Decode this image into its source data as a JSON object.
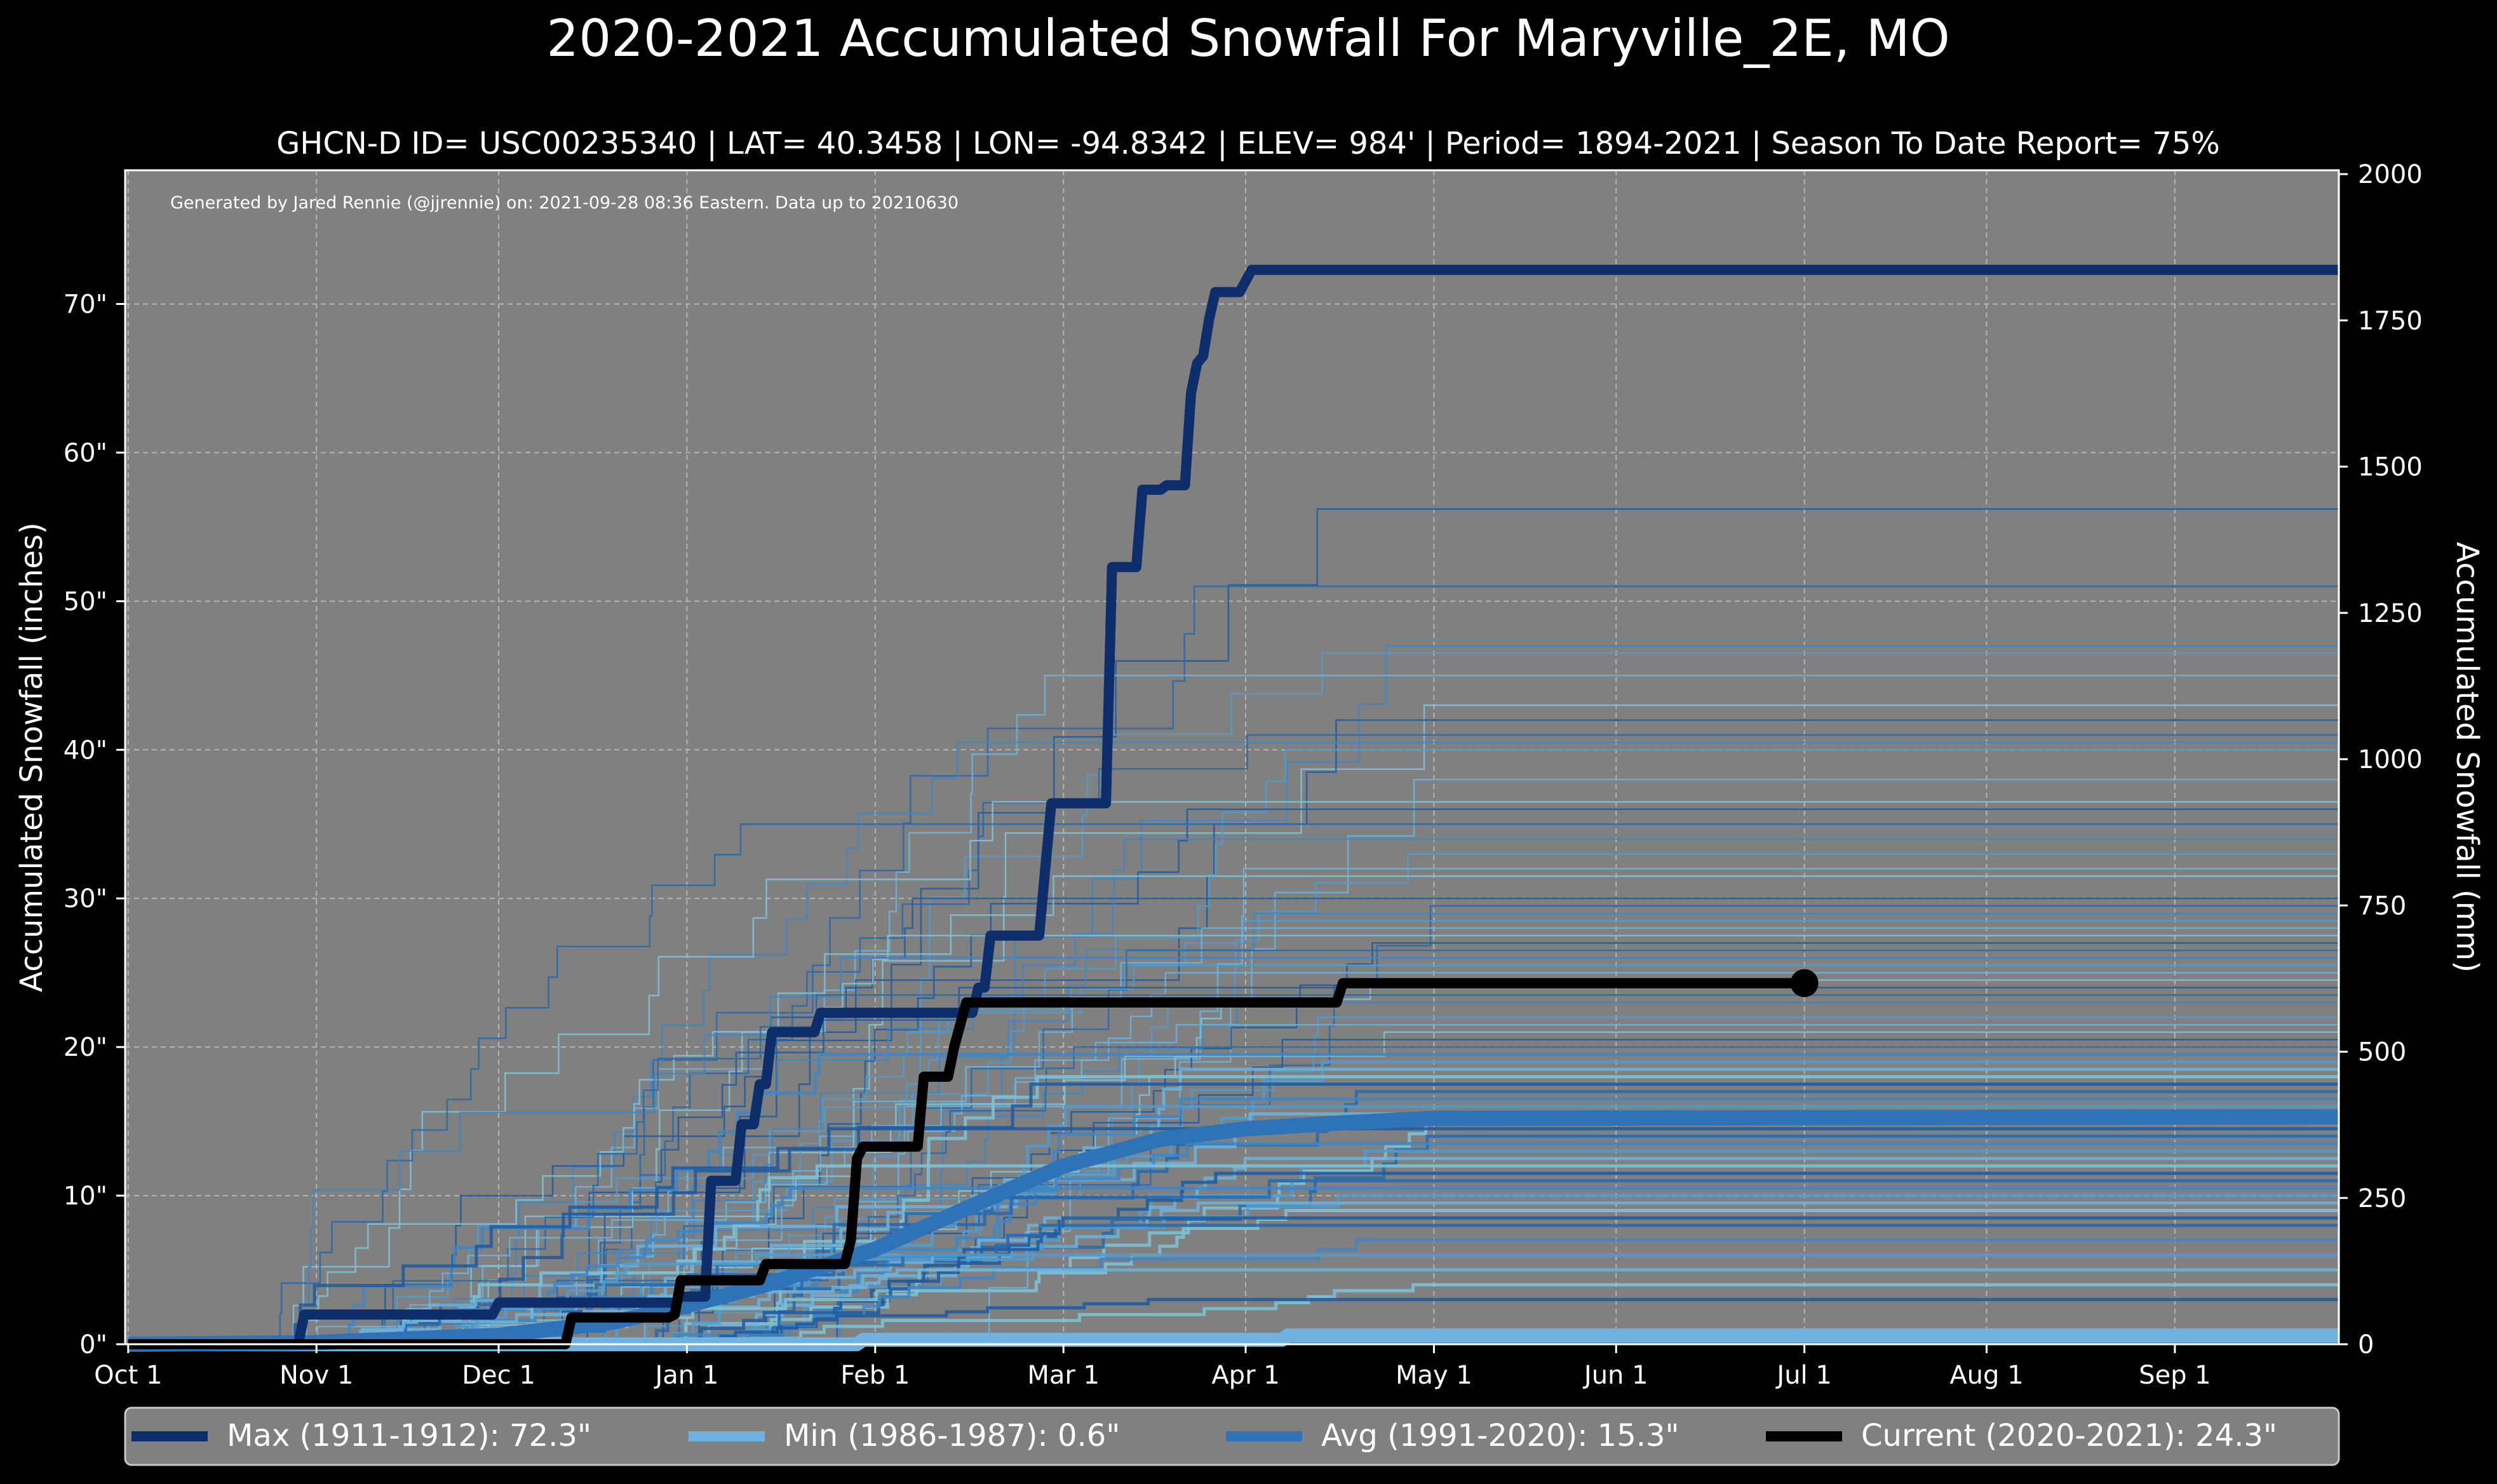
{
  "chart_data": {
    "type": "line",
    "title": "2020-2021 Accumulated Snowfall For Maryville_2E, MO",
    "subtitle": "GHCN-D ID= USC00235340 | LAT= 40.3458 | LON= -94.8342 | ELEV= 984' | Period= 1894-2021 | Season To Date Report= 75%",
    "credit": "Generated by Jared Rennie (@jjrennie) on: 2021-09-28 08:36 Eastern. Data up to 20210630",
    "ylabel": "Accumulated Snowfall (inches)",
    "ylabel_right": "Accumulated Snowfall (mm)",
    "xlabel": "",
    "ylim": [
      0,
      79
    ],
    "ylim_right_mm": [
      0,
      2006.6
    ],
    "xlim_days": [
      -0.5,
      364
    ],
    "grid": true,
    "legend_position": "bottom",
    "x_ticks": [
      {
        "label": "Oct 1",
        "day": 0
      },
      {
        "label": "Nov 1",
        "day": 31
      },
      {
        "label": "Dec 1",
        "day": 61
      },
      {
        "label": "Jan 1",
        "day": 92
      },
      {
        "label": "Feb 1",
        "day": 123
      },
      {
        "label": "Mar 1",
        "day": 154
      },
      {
        "label": "Apr 1",
        "day": 184
      },
      {
        "label": "May 1",
        "day": 215
      },
      {
        "label": "Jun 1",
        "day": 245
      },
      {
        "label": "Jul 1",
        "day": 276
      },
      {
        "label": "Aug 1",
        "day": 306
      },
      {
        "label": "Sep 1",
        "day": 337
      }
    ],
    "y_ticks_left": [
      {
        "label": "0\"",
        "value": 0
      },
      {
        "label": "10\"",
        "value": 10
      },
      {
        "label": "20\"",
        "value": 20
      },
      {
        "label": "30\"",
        "value": 30
      },
      {
        "label": "40\"",
        "value": 40
      },
      {
        "label": "50\"",
        "value": 50
      },
      {
        "label": "60\"",
        "value": 60
      },
      {
        "label": "70\"",
        "value": 70
      }
    ],
    "y_ticks_right": [
      {
        "label": "0",
        "mm": 0
      },
      {
        "label": "250",
        "mm": 250
      },
      {
        "label": "500",
        "mm": 500
      },
      {
        "label": "750",
        "mm": 750
      },
      {
        "label": "1000",
        "mm": 1000
      },
      {
        "label": "1250",
        "mm": 1250
      },
      {
        "label": "1500",
        "mm": 1500
      },
      {
        "label": "1750",
        "mm": 1750
      },
      {
        "label": "2000",
        "mm": 2000
      }
    ],
    "historical_season_finals_inches": [
      56.2,
      51.0,
      47.0,
      46.5,
      45.0,
      43.0,
      42.0,
      41.0,
      40.5,
      40.0,
      38.0,
      36.5,
      36.0,
      35.0,
      34.0,
      33.0,
      32.0,
      31.5,
      30.0,
      29.5,
      29.0,
      28.5,
      28.0,
      27.5,
      27.0,
      26.5,
      26.0,
      25.5,
      25.0,
      24.5,
      24.0,
      23.5,
      23.0,
      22.0,
      21.5,
      21.0,
      20.5,
      20.0,
      19.5,
      19.0,
      18.5,
      18.0,
      17.5,
      17.0,
      16.5,
      16.0,
      15.5,
      15.0,
      14.5,
      14.0,
      13.5,
      13.0,
      12.5,
      12.0,
      11.5,
      11.0,
      10.5,
      10.0,
      9.5,
      9.0,
      8.5,
      8.0,
      7.0,
      6.0,
      5.0,
      4.0,
      3.0
    ],
    "series": [
      {
        "name": "Max (1911-1912)",
        "legend_value": "72.3\"",
        "color": "#0d2e6b",
        "points": [
          [
            0,
            0
          ],
          [
            28,
            0
          ],
          [
            29,
            2.0
          ],
          [
            49,
            2.0
          ],
          [
            50,
            2.0
          ],
          [
            60,
            2.0
          ],
          [
            61,
            2.8
          ],
          [
            90,
            2.8
          ],
          [
            91,
            3.2
          ],
          [
            95,
            3.2
          ],
          [
            96,
            11.0
          ],
          [
            100,
            11.0
          ],
          [
            101,
            14.8
          ],
          [
            103,
            14.8
          ],
          [
            104,
            17.5
          ],
          [
            105,
            17.5
          ],
          [
            106,
            21.0
          ],
          [
            113,
            21.0
          ],
          [
            114,
            22.3
          ],
          [
            124,
            22.3
          ],
          [
            125,
            22.3
          ],
          [
            139,
            22.3
          ],
          [
            140,
            24.0
          ],
          [
            141,
            24.0
          ],
          [
            142,
            27.5
          ],
          [
            150,
            27.5
          ],
          [
            151,
            32.0
          ],
          [
            152,
            36.4
          ],
          [
            161,
            36.4
          ],
          [
            162,
            52.3
          ],
          [
            166,
            52.3
          ],
          [
            167,
            57.5
          ],
          [
            170,
            57.5
          ],
          [
            171,
            57.8
          ],
          [
            174,
            57.8
          ],
          [
            175,
            64.0
          ],
          [
            176,
            66.0
          ],
          [
            177,
            66.5
          ],
          [
            178,
            69.0
          ],
          [
            179,
            70.8
          ],
          [
            183,
            70.8
          ],
          [
            185,
            72.3
          ],
          [
            364,
            72.3
          ]
        ]
      },
      {
        "name": "Min (1986-1987)",
        "legend_value": "0.6\"",
        "color": "#6fb2e0",
        "points": [
          [
            0,
            0
          ],
          [
            120,
            0
          ],
          [
            121,
            0.3
          ],
          [
            190,
            0.3
          ],
          [
            191,
            0.6
          ],
          [
            364,
            0.6
          ]
        ]
      },
      {
        "name": "Avg (1991-2020)",
        "legend_value": "15.3\"",
        "color": "#2e72b8",
        "points": [
          [
            0,
            0
          ],
          [
            30,
            0.1
          ],
          [
            61,
            0.6
          ],
          [
            80,
            1.5
          ],
          [
            92,
            2.6
          ],
          [
            105,
            4.0
          ],
          [
            123,
            6.4
          ],
          [
            140,
            9.5
          ],
          [
            154,
            12.0
          ],
          [
            170,
            13.8
          ],
          [
            184,
            14.5
          ],
          [
            200,
            14.9
          ],
          [
            215,
            15.2
          ],
          [
            364,
            15.3
          ]
        ]
      },
      {
        "name": "Current (2020-2021)",
        "legend_value": "24.3\"",
        "color": "#000000",
        "points": [
          [
            0,
            0
          ],
          [
            72,
            0
          ],
          [
            73,
            1.8
          ],
          [
            89,
            1.8
          ],
          [
            90,
            2.0
          ],
          [
            91,
            4.3
          ],
          [
            104,
            4.3
          ],
          [
            105,
            5.4
          ],
          [
            118,
            5.4
          ],
          [
            119,
            7.0
          ],
          [
            120,
            12.5
          ],
          [
            121,
            13.3
          ],
          [
            130,
            13.3
          ],
          [
            131,
            18.0
          ],
          [
            135,
            18.0
          ],
          [
            136,
            20.0
          ],
          [
            138,
            23.0
          ],
          [
            171,
            23.0
          ],
          [
            194,
            23.0
          ],
          [
            199,
            23.0
          ],
          [
            200,
            24.3
          ],
          [
            276,
            24.3
          ]
        ]
      }
    ]
  }
}
